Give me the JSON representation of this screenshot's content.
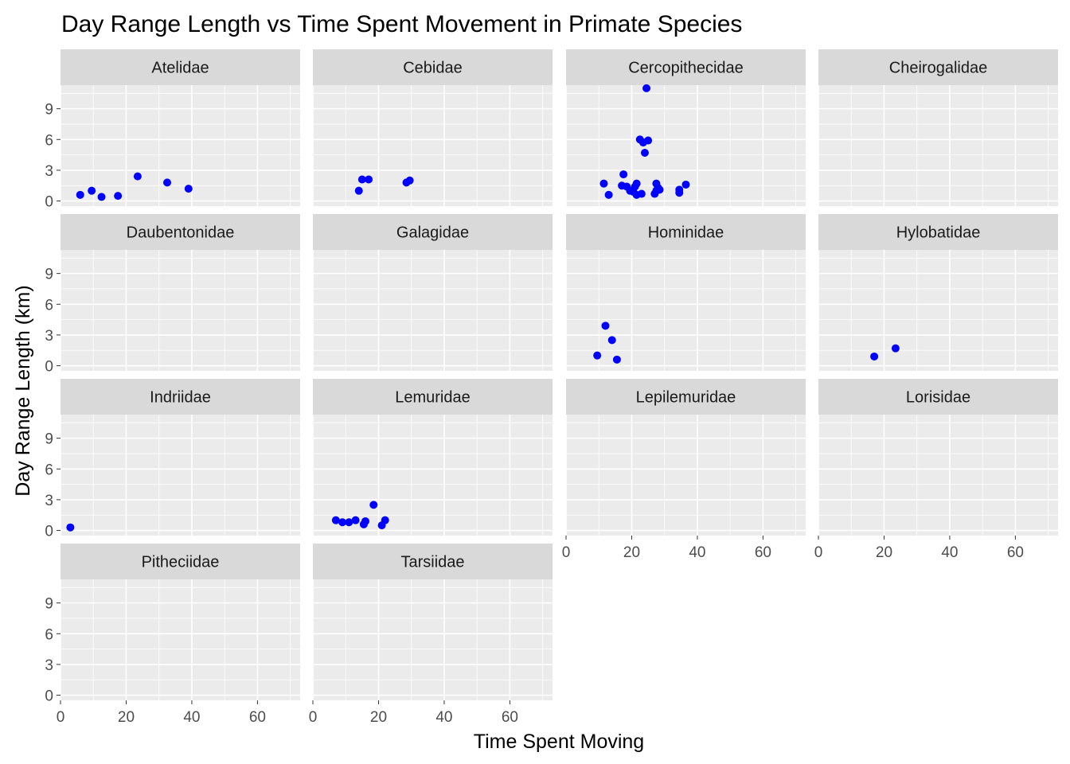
{
  "chart_data": {
    "type": "scatter",
    "title": "Day Range Length vs Time Spent Movement in Primate Species",
    "xlabel": "Time Spent Moving",
    "ylabel": "Day Range Length (km)",
    "xlim": [
      0,
      73
    ],
    "ylim": [
      -0.5,
      11.3
    ],
    "x_ticks": [
      0,
      20,
      40,
      60
    ],
    "y_ticks": [
      0,
      3,
      6,
      9
    ],
    "grid": true,
    "point_color": "#0000FF",
    "panel_background": "#EBEBEB",
    "strip_background": "#D9D9D9",
    "facets": [
      {
        "name": "Atelidae",
        "points": [
          [
            6,
            0.6
          ],
          [
            9.5,
            1.0
          ],
          [
            12.5,
            0.4
          ],
          [
            17.5,
            0.5
          ],
          [
            23.5,
            2.4
          ],
          [
            32.5,
            1.8
          ],
          [
            39,
            1.2
          ]
        ]
      },
      {
        "name": "Cebidae",
        "points": [
          [
            14,
            1.0
          ],
          [
            15,
            2.1
          ],
          [
            17,
            2.1
          ],
          [
            28.5,
            1.8
          ],
          [
            29.5,
            2.0
          ]
        ]
      },
      {
        "name": "Cercopithecidae",
        "points": [
          [
            11.5,
            1.7
          ],
          [
            13,
            0.6
          ],
          [
            17,
            1.5
          ],
          [
            17.5,
            2.6
          ],
          [
            18.5,
            1.4
          ],
          [
            19.5,
            1.0
          ],
          [
            20.5,
            0.9
          ],
          [
            21,
            1.4
          ],
          [
            21.5,
            1.7
          ],
          [
            21.5,
            0.6
          ],
          [
            22.5,
            6.0
          ],
          [
            23,
            0.7
          ],
          [
            23.5,
            5.7
          ],
          [
            24,
            4.7
          ],
          [
            24.5,
            11.0
          ],
          [
            25,
            5.9
          ],
          [
            27,
            0.7
          ],
          [
            27.5,
            1.7
          ],
          [
            27.5,
            1.0
          ],
          [
            28,
            1.3
          ],
          [
            28.5,
            1.1
          ],
          [
            34.5,
            1.1
          ],
          [
            34.5,
            0.8
          ],
          [
            36.5,
            1.6
          ]
        ]
      },
      {
        "name": "Cheirogalidae",
        "points": []
      },
      {
        "name": "Daubentonidae",
        "points": []
      },
      {
        "name": "Galagidae",
        "points": []
      },
      {
        "name": "Hominidae",
        "points": [
          [
            9.5,
            1.0
          ],
          [
            12,
            3.9
          ],
          [
            14,
            2.5
          ],
          [
            15.5,
            0.6
          ]
        ]
      },
      {
        "name": "Hylobatidae",
        "points": [
          [
            17,
            0.9
          ],
          [
            23.5,
            1.7
          ]
        ]
      },
      {
        "name": "Indriidae",
        "points": [
          [
            3,
            0.3
          ]
        ]
      },
      {
        "name": "Lemuridae",
        "points": [
          [
            7,
            1.0
          ],
          [
            9,
            0.8
          ],
          [
            11,
            0.8
          ],
          [
            13,
            1.0
          ],
          [
            15.5,
            0.6
          ],
          [
            16,
            0.9
          ],
          [
            18.5,
            2.5
          ],
          [
            21,
            0.5
          ],
          [
            22,
            1.0
          ]
        ]
      },
      {
        "name": "Lepilemuridae",
        "points": []
      },
      {
        "name": "Lorisidae",
        "points": []
      },
      {
        "name": "Pitheciidae",
        "points": []
      },
      {
        "name": "Tarsiidae",
        "points": []
      }
    ]
  }
}
